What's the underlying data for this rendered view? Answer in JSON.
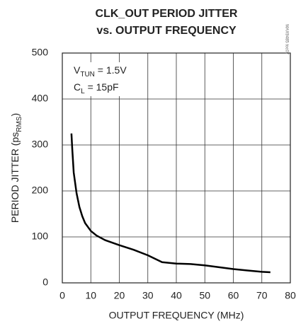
{
  "chart_data": {
    "type": "line",
    "title": [
      "CLK_OUT PERIOD JITTER",
      "vs. OUTPUT FREQUENCY"
    ],
    "xlabel": "OUTPUT FREQUENCY (MHz)",
    "ylabel": {
      "text": "PERIOD JITTER (ps",
      "sub": "RMS",
      "after": ")"
    },
    "annotations": [
      {
        "text": "V",
        "sub": "TUN",
        "after": " = 1.5V"
      },
      {
        "text": "C",
        "sub": "L",
        "after": " = 15pF"
      }
    ],
    "side_note": "MAX9485 toc07",
    "x": [
      3.2,
      3.5,
      4,
      5,
      6,
      7,
      8,
      10,
      12,
      15,
      20,
      25,
      30,
      35,
      40,
      45,
      50,
      55,
      60,
      65,
      70,
      73
    ],
    "values": [
      325,
      290,
      240,
      195,
      165,
      145,
      130,
      113,
      103,
      93,
      82,
      72,
      60,
      45,
      42,
      41,
      38,
      34,
      30,
      27,
      24,
      23
    ],
    "color": "#000000",
    "xlim": [
      0,
      80
    ],
    "xticks": [
      0,
      10,
      20,
      30,
      40,
      50,
      60,
      70,
      80
    ],
    "ylim": [
      0,
      500
    ],
    "yticks": [
      0,
      100,
      200,
      300,
      400,
      500
    ],
    "grid": true
  }
}
